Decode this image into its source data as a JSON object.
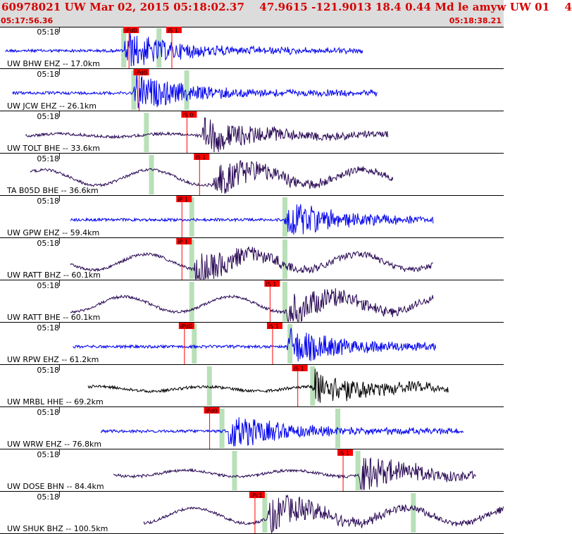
{
  "header": {
    "title": "60978021 UW Mar 02, 2015 05:18:02.37    47.9615 -121.9013 18.4 0.44 Md le amyw UW 01    4",
    "start_time": "05:17:56.36",
    "end_time": "05:18:38.21"
  },
  "colors": {
    "blue_trace": "#0000ee",
    "purple_trace": "#2a0a55",
    "black_trace": "#000000",
    "pick": "#ff0000",
    "theory_window": "#b9e0b9"
  },
  "tick_label": "05:18",
  "panels": [
    {
      "label": "UW BHW EHZ -- 17.0km",
      "color": "blue",
      "trace": [
        0.01,
        0.72
      ],
      "arrival": 0.245,
      "lf": 0.0,
      "picks": [
        {
          "text": "iPd0",
          "x": 0.245
        },
        {
          "text": "iS 1",
          "x": 0.33
        }
      ],
      "greens": [
        0.245,
        0.315
      ]
    },
    {
      "label": "UW JCW EHZ -- 26.1km",
      "color": "blue",
      "trace": [
        0.025,
        0.75
      ],
      "arrival": 0.265,
      "lf": 0.0,
      "picks": [
        {
          "text": "iPd0",
          "x": 0.265
        }
      ],
      "greens": [
        0.265,
        0.37
      ]
    },
    {
      "label": "UW TOLT BHE -- 33.6km",
      "color": "purple",
      "trace": [
        0.05,
        0.77
      ],
      "arrival": 0.4,
      "lf": 0.2,
      "picks": [
        {
          "text": "iS 0",
          "x": 0.36
        }
      ],
      "greens": [
        0.29
      ]
    },
    {
      "label": "TA B05D BHE -- 36.6km",
      "color": "purple",
      "trace": [
        0.06,
        0.78
      ],
      "arrival": 0.42,
      "lf": 1.0,
      "picks": [
        {
          "text": "iS 1",
          "x": 0.385
        }
      ],
      "greens": [
        0.3
      ]
    },
    {
      "label": "UW GPW EHZ -- 59.4km",
      "color": "blue",
      "trace": [
        0.14,
        0.86
      ],
      "arrival": 0.565,
      "lf": 0.0,
      "picks": [
        {
          "text": "iP 1",
          "x": 0.35
        }
      ],
      "greens": [
        0.38,
        0.565
      ]
    },
    {
      "label": "UW RATT BHZ -- 60.1km",
      "color": "purple",
      "trace": [
        0.14,
        0.86
      ],
      "arrival": 0.385,
      "lf": 1.0,
      "picks": [
        {
          "text": "iP 1",
          "x": 0.35
        }
      ],
      "greens": [
        0.38,
        0.565
      ]
    },
    {
      "label": "UW RATT BHE -- 60.1km",
      "color": "purple",
      "trace": [
        0.14,
        0.86
      ],
      "arrival": 0.565,
      "lf": 1.0,
      "picks": [
        {
          "text": "iS 1",
          "x": 0.525
        }
      ],
      "greens": [
        0.38,
        0.565
      ]
    },
    {
      "label": "UW RPW EHZ -- 61.2km",
      "color": "blue",
      "trace": [
        0.145,
        0.865
      ],
      "arrival": 0.57,
      "lf": 0.0,
      "picks": [
        {
          "text": "iPd0",
          "x": 0.355
        },
        {
          "text": "iS 1",
          "x": 0.53
        }
      ],
      "greens": [
        0.385,
        0.575
      ]
    },
    {
      "label": "UW MRBL HHE -- 69.2km",
      "color": "black",
      "trace": [
        0.175,
        0.89
      ],
      "arrival": 0.62,
      "lf": 0.3,
      "picks": [
        {
          "text": "iS 1",
          "x": 0.58
        }
      ],
      "greens": [
        0.415,
        0.62
      ]
    },
    {
      "label": "UW WRW EHZ -- 76.8km",
      "color": "blue",
      "trace": [
        0.2,
        0.92
      ],
      "arrival": 0.45,
      "lf": 0.0,
      "picks": [
        {
          "text": "iPd0",
          "x": 0.405
        }
      ],
      "greens": [
        0.44,
        0.67
      ]
    },
    {
      "label": "UW DOSE BHN -- 84.4km",
      "color": "purple",
      "trace": [
        0.225,
        0.945
      ],
      "arrival": 0.71,
      "lf": 0.4,
      "picks": [
        {
          "text": "iS 1",
          "x": 0.67
        }
      ],
      "greens": [
        0.465,
        0.71
      ]
    },
    {
      "label": "UW SHUK BHZ -- 100.5km",
      "color": "purple",
      "trace": [
        0.285,
        1.0
      ],
      "arrival": 0.53,
      "lf": 1.0,
      "picks": [
        {
          "text": "iPc1",
          "x": 0.495
        }
      ],
      "greens": [
        0.525,
        0.82
      ]
    }
  ]
}
